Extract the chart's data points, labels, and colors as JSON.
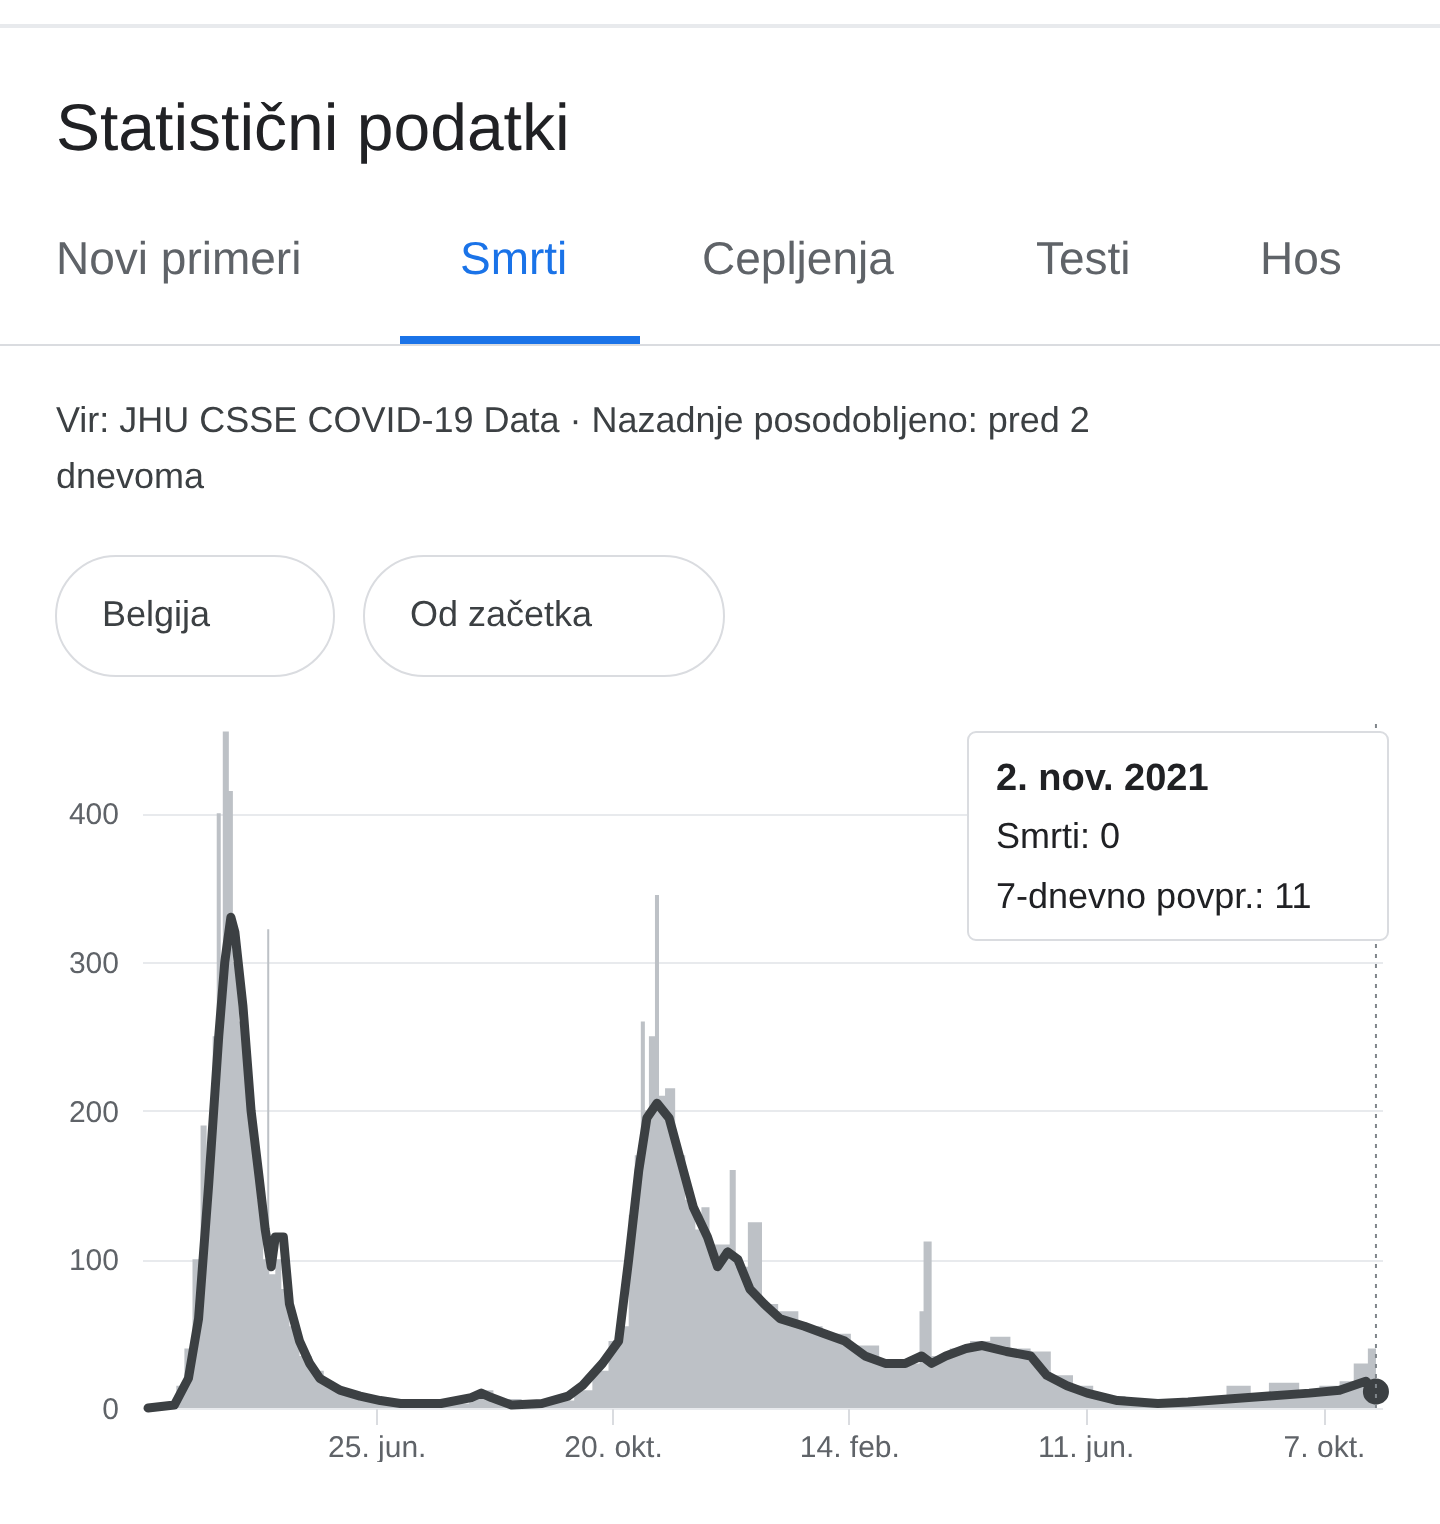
{
  "chart_data": {
    "type": "line",
    "title": "Statistični podatki",
    "subtitle": "Vir: JHU CSSE COVID-19 Data · Nazadnje posodobljeno: pred 2 dnevoma",
    "annotations": [
      "Novi primeri",
      "Smrti",
      "Cepljenja",
      "Testi",
      "Hos",
      "Belgija",
      "Od začetka",
      "2. nov. 2021",
      "Smrti: 0",
      "7-dnevno povpr.: 11"
    ],
    "xlim": [
      "2020-03-01",
      "2021-11-05"
    ],
    "xticks": [
      {
        "value": "2020-06-25",
        "label": "25. jun."
      },
      {
        "value": "2020-10-20",
        "label": "20. okt."
      },
      {
        "value": "2021-02-14",
        "label": "14. feb."
      },
      {
        "value": "2021-06-11",
        "label": "11. jun."
      },
      {
        "value": "2021-10-07",
        "label": "7. okt."
      }
    ],
    "ylim": [
      0,
      460
    ],
    "yticks": [
      0,
      100,
      200,
      300,
      400
    ],
    "grid": "y",
    "ref_lines": [
      {
        "axis": "x",
        "value": "2021-11-02",
        "label": null,
        "color": "#80868b",
        "line_style": "dotted"
      }
    ],
    "series": [
      {
        "type": "area",
        "color": "#bdc1c6",
        "x": [
          "2020-03-04",
          "2020-03-12",
          "2020-03-18",
          "2020-03-22",
          "2020-03-26",
          "2020-03-30",
          "2020-04-02",
          "2020-04-05",
          "2020-04-07",
          "2020-04-09",
          "2020-04-10",
          "2020-04-13",
          "2020-04-15",
          "2020-04-18",
          "2020-04-21",
          "2020-04-24",
          "2020-04-27",
          "2020-04-30",
          "2020-05-02",
          "2020-05-03",
          "2020-05-06",
          "2020-05-09",
          "2020-05-13",
          "2020-05-18",
          "2020-05-24",
          "2020-05-30",
          "2020-06-08",
          "2020-06-20",
          "2020-07-05",
          "2020-07-25",
          "2020-08-10",
          "2020-08-16",
          "2020-08-22",
          "2020-09-05",
          "2020-09-20",
          "2020-10-01",
          "2020-10-10",
          "2020-10-18",
          "2020-10-24",
          "2020-10-28",
          "2020-10-31",
          "2020-11-03",
          "2020-11-05",
          "2020-11-07",
          "2020-11-10",
          "2020-11-12",
          "2020-11-15",
          "2020-11-20",
          "2020-11-25",
          "2020-11-30",
          "2020-12-03",
          "2020-12-07",
          "2020-12-17",
          "2020-12-20",
          "2020-12-26",
          "2021-01-02",
          "2021-01-10",
          "2021-01-20",
          "2021-02-01",
          "2021-02-15",
          "2021-03-01",
          "2021-03-15",
          "2021-03-21",
          "2021-03-23",
          "2021-03-27",
          "2021-04-05",
          "2021-04-15",
          "2021-04-25",
          "2021-05-05",
          "2021-05-15",
          "2021-05-25",
          "2021-06-05",
          "2021-06-15",
          "2021-07-01",
          "2021-07-20",
          "2021-08-05",
          "2021-08-20",
          "2021-09-01",
          "2021-09-10",
          "2021-09-25",
          "2021-10-05",
          "2021-10-15",
          "2021-10-22",
          "2021-10-29",
          "2021-11-02"
        ],
        "values": [
          0,
          3,
          15,
          40,
          100,
          190,
          150,
          250,
          400,
          300,
          455,
          415,
          300,
          260,
          220,
          180,
          140,
          100,
          322,
          90,
          100,
          80,
          55,
          35,
          25,
          15,
          10,
          5,
          2,
          3,
          8,
          12,
          6,
          2,
          5,
          12,
          25,
          45,
          55,
          130,
          170,
          260,
          200,
          250,
          345,
          210,
          215,
          170,
          140,
          120,
          135,
          110,
          160,
          95,
          125,
          70,
          65,
          55,
          50,
          42,
          30,
          30,
          65,
          112,
          35,
          40,
          45,
          48,
          40,
          38,
          22,
          15,
          8,
          4,
          3,
          5,
          15,
          8,
          17,
          12,
          15,
          18,
          30,
          40,
          0
        ]
      },
      {
        "color": "#3c4043",
        "x": [
          "2020-03-04",
          "2020-03-17",
          "2020-03-24",
          "2020-03-29",
          "2020-04-03",
          "2020-04-08",
          "2020-04-11",
          "2020-04-14",
          "2020-04-16",
          "2020-04-20",
          "2020-04-24",
          "2020-04-28",
          "2020-05-01",
          "2020-05-04",
          "2020-05-06",
          "2020-05-10",
          "2020-05-13",
          "2020-05-18",
          "2020-05-23",
          "2020-05-28",
          "2020-06-07",
          "2020-06-17",
          "2020-06-27",
          "2020-07-07",
          "2020-07-27",
          "2020-08-11",
          "2020-08-16",
          "2020-08-21",
          "2020-08-31",
          "2020-09-15",
          "2020-09-28",
          "2020-10-05",
          "2020-10-15",
          "2020-10-23",
          "2020-10-28",
          "2020-11-02",
          "2020-11-06",
          "2020-11-11",
          "2020-11-17",
          "2020-11-24",
          "2020-11-29",
          "2020-12-06",
          "2020-12-11",
          "2020-12-16",
          "2020-12-21",
          "2020-12-27",
          "2021-01-03",
          "2021-01-11",
          "2021-01-23",
          "2021-02-02",
          "2021-02-12",
          "2021-02-22",
          "2021-03-04",
          "2021-03-14",
          "2021-03-22",
          "2021-03-27",
          "2021-04-03",
          "2021-04-13",
          "2021-04-21",
          "2021-05-03",
          "2021-05-15",
          "2021-05-23",
          "2021-06-02",
          "2021-06-12",
          "2021-06-27",
          "2021-07-17",
          "2021-08-01",
          "2021-08-21",
          "2021-09-10",
          "2021-09-30",
          "2021-10-15",
          "2021-10-28",
          "2021-11-02"
        ],
        "values": [
          0,
          2,
          20,
          60,
          150,
          250,
          300,
          330,
          320,
          270,
          200,
          155,
          120,
          95,
          115,
          115,
          70,
          45,
          30,
          20,
          12,
          8,
          5,
          3,
          3,
          7,
          10,
          7,
          2,
          3,
          8,
          15,
          30,
          45,
          100,
          160,
          195,
          205,
          195,
          160,
          135,
          115,
          95,
          105,
          100,
          80,
          70,
          60,
          55,
          50,
          45,
          35,
          30,
          30,
          35,
          30,
          35,
          40,
          42,
          38,
          35,
          22,
          15,
          10,
          5,
          3,
          4,
          6,
          8,
          10,
          12,
          18,
          11
        ]
      },
      {
        "type": "scatter",
        "color": "#3c4043",
        "marker": "circle",
        "x": [
          "2021-11-02"
        ],
        "values": [
          11
        ]
      }
    ]
  }
}
